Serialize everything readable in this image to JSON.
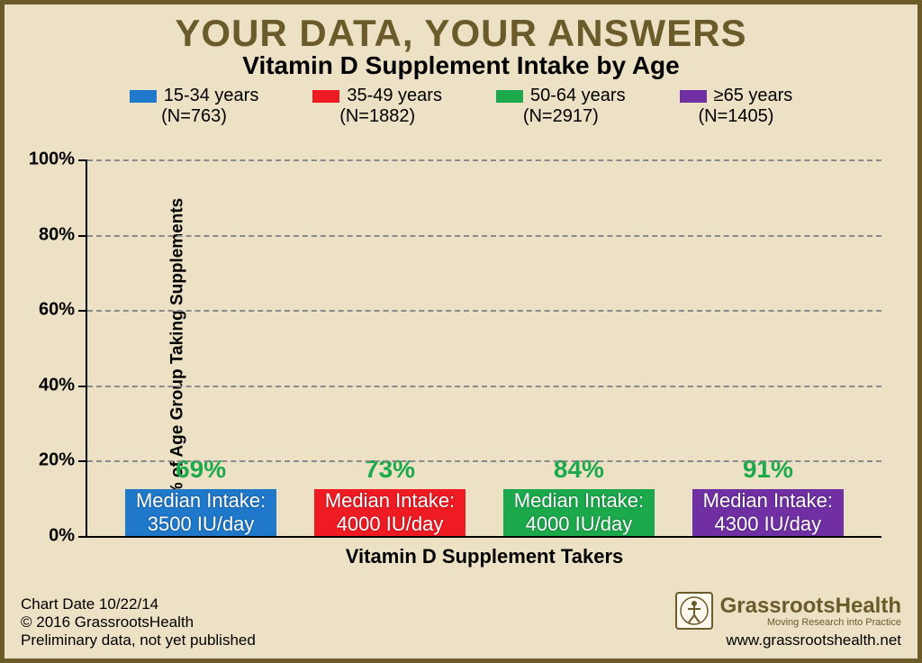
{
  "background_color": "#ece1c5",
  "border_color": "#6b5a2a",
  "header": {
    "title": "YOUR DATA, YOUR ANSWERS",
    "title_color": "#6b5a2a",
    "title_fontsize": 42,
    "subtitle": "Vitamin D Supplement Intake by Age",
    "subtitle_color": "#000000",
    "subtitle_fontsize": 28
  },
  "legend": {
    "fontsize": 20,
    "text_color": "#000000",
    "items": [
      {
        "label": "15-34 years",
        "n": "(N=763)",
        "color": "#1f78c9"
      },
      {
        "label": "35-49 years",
        "n": "(N=1882)",
        "color": "#ee1b23"
      },
      {
        "label": "50-64 years",
        "n": "(N=2917)",
        "color": "#1ba94c"
      },
      {
        "label": "≥65 years",
        "n": "(N=1405)",
        "color": "#7030a3"
      }
    ]
  },
  "chart": {
    "type": "bar",
    "ylim": [
      0,
      100
    ],
    "ytick_step": 20,
    "ytick_suffix": "%",
    "ytick_fontsize": 20,
    "yaxis_title": "% of Age Group Taking Supplements",
    "yaxis_title_fontsize": 19,
    "xaxis_title": "Vitamin D Supplement Takers",
    "xaxis_title_fontsize": 22,
    "grid_color": "#8a8a8a",
    "value_label_color": "#1ba94c",
    "value_label_fontsize": 28,
    "bar_text_fontsize": 22,
    "bars": [
      {
        "value": 69,
        "value_label": "69%",
        "color": "#1f78c9",
        "median_line1": "Median Intake:",
        "median_line2": "3500 IU/day"
      },
      {
        "value": 73,
        "value_label": "73%",
        "color": "#ee1b23",
        "median_line1": "Median Intake:",
        "median_line2": "4000 IU/day"
      },
      {
        "value": 84,
        "value_label": "84%",
        "color": "#1ba94c",
        "median_line1": "Median Intake:",
        "median_line2": "4000 IU/day"
      },
      {
        "value": 91,
        "value_label": "91%",
        "color": "#7030a3",
        "median_line1": "Median Intake:",
        "median_line2": "4300 IU/day"
      }
    ]
  },
  "footer": {
    "left_fontsize": 17,
    "line1": "Chart Date 10/22/14",
    "line2": "© 2016 GrassrootsHealth",
    "line3": "Preliminary data, not yet published",
    "logo_main": "GrassrootsHealth",
    "logo_main_fontsize": 24,
    "logo_sub": "Moving Research into Practice",
    "logo_sub_fontsize": 11,
    "url": "www.grassrootshealth.net",
    "url_fontsize": 17,
    "logo_color": "#6b5a2a"
  }
}
